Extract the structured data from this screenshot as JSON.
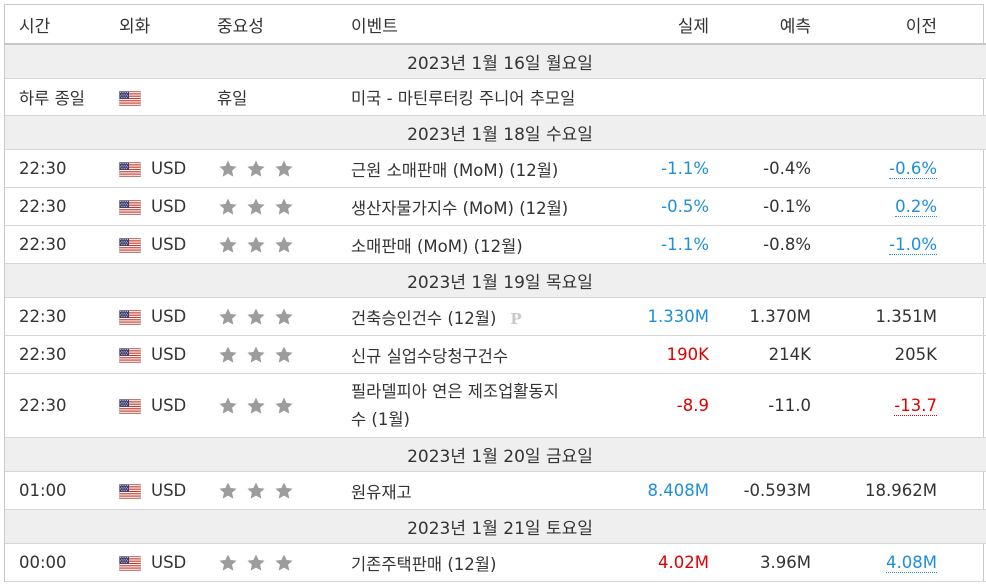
{
  "headers": {
    "time": "시간",
    "currency": "외화",
    "importance": "중요성",
    "event": "이벤트",
    "actual": "실제",
    "forecast": "예측",
    "previous": "이전"
  },
  "colors": {
    "positive": "#1e8fd8",
    "negative": "#e00000",
    "date_row_bg": "#efefef"
  },
  "icons": {
    "flag": "us-flag-icon",
    "importance": "star-icon"
  },
  "days": [
    {
      "date": "2023년 1월 16일 월요일",
      "events": [
        {
          "time": "하루 종일",
          "currency": "",
          "holiday": "휴일",
          "event": "미국 - 마틴루터킹 주니어 추모일",
          "actual": "",
          "forecast": "",
          "previous": ""
        }
      ]
    },
    {
      "date": "2023년 1월 18일 수요일",
      "events": [
        {
          "time": "22:30",
          "currency": "USD",
          "event": "근원 소매판매 (MoM) (12월)",
          "actual": "-1.1%",
          "forecast": "-0.4%",
          "previous": "-0.6%"
        },
        {
          "time": "22:30",
          "currency": "USD",
          "event": "생산자물가지수 (MoM) (12월)",
          "actual": "-0.5%",
          "forecast": "-0.1%",
          "previous": "0.2%"
        },
        {
          "time": "22:30",
          "currency": "USD",
          "event": "소매판매 (MoM) (12월)",
          "actual": "-1.1%",
          "forecast": "-0.8%",
          "previous": "-1.0%"
        }
      ]
    },
    {
      "date": "2023년 1월 19일 목요일",
      "events": [
        {
          "time": "22:30",
          "currency": "USD",
          "event": "건축승인건수 (12월)",
          "tag": "P",
          "actual": "1.330M",
          "forecast": "1.370M",
          "previous": "1.351M"
        },
        {
          "time": "22:30",
          "currency": "USD",
          "event": "신규 실업수당청구건수",
          "actual": "190K",
          "forecast": "214K",
          "previous": "205K"
        },
        {
          "time": "22:30",
          "currency": "USD",
          "event_line1": "필라델피아 연은 제조업활동지",
          "event_line2": "수 (1월)",
          "actual": "-8.9",
          "forecast": "-11.0",
          "previous": "-13.7"
        }
      ]
    },
    {
      "date": "2023년 1월 20일 금요일",
      "events": [
        {
          "time": "01:00",
          "currency": "USD",
          "event": "원유재고",
          "actual": "8.408M",
          "forecast": "-0.593M",
          "previous": "18.962M"
        }
      ]
    },
    {
      "date": "2023년 1월 21일 토요일",
      "events": [
        {
          "time": "00:00",
          "currency": "USD",
          "event": "기존주택판매 (12월)",
          "actual": "4.02M",
          "forecast": "3.96M",
          "previous": "4.08M"
        }
      ]
    }
  ]
}
